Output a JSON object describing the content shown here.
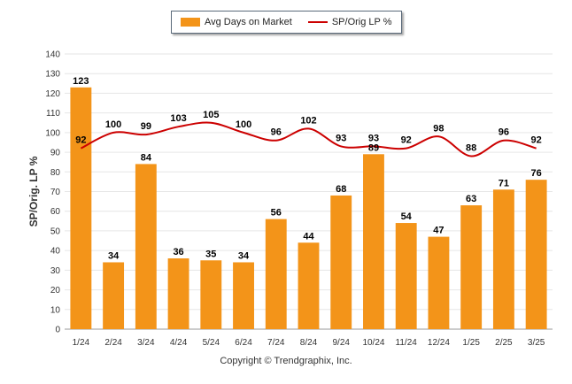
{
  "legend": {
    "bar_label": "Avg Days on Market",
    "line_label": "SP/Orig LP %"
  },
  "copyright": "Copyright © Trendgraphix, Inc.",
  "colors": {
    "bar": "#f39419",
    "line": "#cc0000",
    "grid": "#e6e6e6",
    "label": "#000000"
  },
  "chart_data": {
    "type": "bar",
    "title": "",
    "xlabel": "",
    "ylabel": "SP/Orig. LP %",
    "ylim": [
      0,
      140
    ],
    "yticks": [
      0,
      10,
      20,
      30,
      40,
      50,
      60,
      70,
      80,
      90,
      100,
      110,
      120,
      130,
      140
    ],
    "grid": true,
    "legend_position": "top-center",
    "categories": [
      "1/24",
      "2/24",
      "3/24",
      "4/24",
      "5/24",
      "6/24",
      "7/24",
      "8/24",
      "9/24",
      "10/24",
      "11/24",
      "12/24",
      "1/25",
      "2/25",
      "3/25"
    ],
    "series": [
      {
        "name": "Avg Days on Market",
        "type": "bar",
        "values": [
          123,
          34,
          84,
          36,
          35,
          34,
          56,
          44,
          68,
          89,
          54,
          47,
          63,
          71,
          76
        ]
      },
      {
        "name": "SP/Orig LP %",
        "type": "line",
        "values": [
          92,
          100,
          99,
          103,
          105,
          100,
          96,
          102,
          93,
          93,
          92,
          98,
          88,
          96,
          92
        ]
      }
    ]
  }
}
